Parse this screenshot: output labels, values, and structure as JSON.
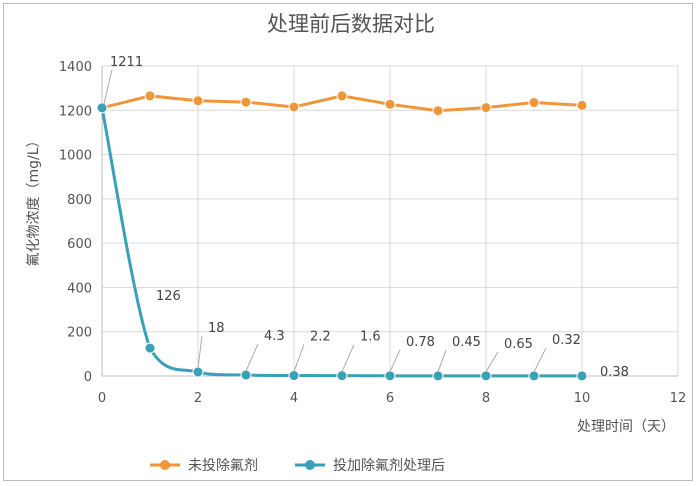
{
  "chart_data": {
    "type": "line",
    "title": "处理前后数据对比",
    "xlabel": "处理时间（天）",
    "ylabel": "氟化物浓度（mg/L）",
    "xlim": [
      0,
      12
    ],
    "ylim": [
      0,
      1400
    ],
    "x_ticks": [
      0,
      2,
      4,
      6,
      8,
      10,
      12
    ],
    "y_ticks": [
      0,
      200,
      400,
      600,
      800,
      1000,
      1200,
      1400
    ],
    "grid": true,
    "legend_position": "bottom",
    "series": [
      {
        "name": "未投除氟剂",
        "color": "#F0963A",
        "x": [
          0,
          1,
          2,
          3,
          4,
          5,
          6,
          7,
          8,
          9,
          10
        ],
        "y": [
          1211,
          1265,
          1243,
          1237,
          1215,
          1265,
          1227,
          1198,
          1212,
          1235,
          1222
        ],
        "labels": [
          "1211",
          "",
          "",
          "",
          "",
          "",
          "",
          "",
          "",
          "",
          ""
        ]
      },
      {
        "name": "投加除氟剂处理后",
        "color": "#3AA0B8",
        "x": [
          0,
          1,
          2,
          3,
          4,
          5,
          6,
          7,
          8,
          9,
          10
        ],
        "y": [
          1211,
          126,
          18,
          4.3,
          2.2,
          1.6,
          0.78,
          0.45,
          0.65,
          0.32,
          0.38
        ],
        "labels": [
          "",
          "126",
          "18",
          "4.3",
          "2.2",
          "1.6",
          "0.78",
          "0.45",
          "0.65",
          "0.32",
          "0.38"
        ]
      }
    ]
  }
}
